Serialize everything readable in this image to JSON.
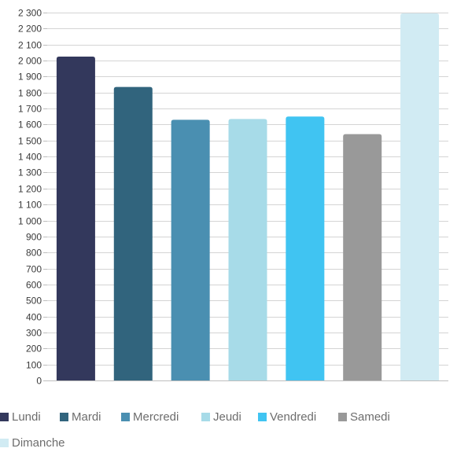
{
  "chart_data": {
    "type": "bar",
    "title": "",
    "xlabel": "",
    "ylabel": "",
    "ylim": [
      0,
      2300
    ],
    "yticks": [
      0,
      100,
      200,
      300,
      400,
      500,
      600,
      700,
      800,
      900,
      1000,
      1100,
      1200,
      1300,
      1400,
      1500,
      1600,
      1700,
      1800,
      1900,
      2000,
      2100,
      2200,
      2300
    ],
    "ytick_labels": [
      "0",
      "100",
      "200",
      "300",
      "400",
      "500",
      "600",
      "700",
      "800",
      "900",
      "1 000",
      "1 100",
      "1 200",
      "1 300",
      "1 400",
      "1 500",
      "1 600",
      "1 700",
      "1 800",
      "1 900",
      "2 000",
      "2 100",
      "2 200",
      "2 300"
    ],
    "grid": true,
    "legend_position": "bottom-left",
    "categories": [
      "Lundi",
      "Mardi",
      "Mercredi",
      "Jeudi",
      "Vendredi",
      "Samedi",
      "Dimanche"
    ],
    "values": [
      2025,
      1835,
      1630,
      1635,
      1650,
      1540,
      2295
    ],
    "colors": [
      "#33385c",
      "#31647d",
      "#4a8fb1",
      "#a7dbe8",
      "#40c4f2",
      "#999999",
      "#d1ebf3"
    ]
  }
}
